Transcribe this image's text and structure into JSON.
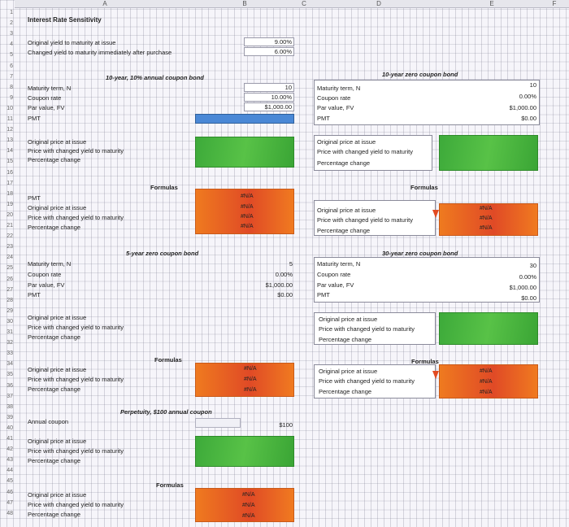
{
  "columns": [
    "A",
    "B",
    "C",
    "D",
    "E",
    "F"
  ],
  "rows": [
    "1",
    "2",
    "3",
    "4",
    "5",
    "6",
    "7",
    "8",
    "9",
    "10",
    "11",
    "12",
    "13",
    "14",
    "15",
    "16",
    "17",
    "18",
    "19",
    "20",
    "21",
    "22",
    "23",
    "24",
    "25",
    "26",
    "27",
    "28",
    "29",
    "30",
    "31",
    "32",
    "33",
    "34",
    "35",
    "36",
    "37",
    "38",
    "39",
    "40",
    "41",
    "42",
    "43",
    "44",
    "45",
    "46",
    "47",
    "48"
  ],
  "title": "Interest Rate Sensitivity",
  "inputs": {
    "orig_label": "Original yield to maturity at issue",
    "orig_value": "9.00%",
    "changed_label": "Changed yield to maturity immediately after purchase",
    "changed_value": "6.00%"
  },
  "bond10coupon": {
    "header": "10-year, 10% annual coupon bond",
    "maturity_label": "Maturity term, N",
    "maturity_value": "10",
    "coupon_label": "Coupon rate",
    "coupon_value": "10.00%",
    "par_label": "Par value, FV",
    "par_value": "$1,000.00",
    "pmt_label": "PMT",
    "price_orig": "Original price at issue",
    "price_changed": "Price with changed yield to maturity",
    "pct_change": "Percentage change",
    "formulas": "Formulas",
    "f_pmt": "PMT",
    "f_orig": "Original price at issue",
    "f_changed": "Price with changed yield to maturity",
    "f_pct": "Percentage change",
    "na1": "#N/A",
    "na2": "#N/A",
    "na3": "#N/A",
    "na4": "#N/A"
  },
  "bond10zero": {
    "header": "10-year zero coupon bond",
    "maturity_label": "Maturity term, N",
    "maturity_value": "10",
    "coupon_label": "Coupon rate",
    "coupon_value": "0.00%",
    "par_label": "Par value, FV",
    "par_value": "$1,000.00",
    "pmt_label": "PMT",
    "pmt_value": "$0.00",
    "price_orig": "Original price at issue",
    "price_changed": "Price with changed yield to maturity",
    "pct_change": "Percentage change",
    "formulas": "Formulas",
    "f_orig": "Original price at issue",
    "f_changed": "Price with changed yield to maturity",
    "f_pct": "Percentage change",
    "na1": "#N/A",
    "na2": "#N/A",
    "na3": "#N/A"
  },
  "bond5zero": {
    "header": "5-year zero coupon bond",
    "maturity_label": "Maturity term, N",
    "maturity_value": "5",
    "coupon_label": "Coupon rate",
    "coupon_value": "0.00%",
    "par_label": "Par value, FV",
    "par_value": "$1,000.00",
    "pmt_label": "PMT",
    "pmt_value": "$0.00",
    "price_orig": "Original price at issue",
    "price_changed": "Price with changed yield to maturity",
    "pct_change": "Percentage change",
    "formulas": "Formulas",
    "f_orig": "Original price at issue",
    "f_changed": "Price with changed yield to maturity",
    "f_pct": "Percentage change",
    "na1": "#N/A",
    "na2": "#N/A",
    "na3": "#N/A"
  },
  "bond30zero": {
    "header": "30-year zero coupon bond",
    "maturity_label": "Maturity term, N",
    "maturity_value": "30",
    "coupon_label": "Coupon rate",
    "coupon_value": "0.00%",
    "par_label": "Par value, FV",
    "par_value": "$1,000.00",
    "pmt_label": "PMT",
    "pmt_value": "$0.00",
    "price_orig": "Original price at issue",
    "price_changed": "Price with changed yield to maturity",
    "pct_change": "Percentage change",
    "formulas": "Formulas",
    "f_orig": "Original price at issue",
    "f_changed": "Price with changed yield to maturity",
    "f_pct": "Percentage change",
    "na1": "#N/A",
    "na2": "#N/A",
    "na3": "#N/A"
  },
  "perpetuity": {
    "header": "Perpetuity, $100 annual coupon",
    "coupon_label": "Annual coupon",
    "coupon_value": "$100",
    "price_orig": "Original price at issue",
    "price_changed": "Price with changed yield to maturity",
    "pct_change": "Percentage change",
    "formulas": "Formulas",
    "f_orig": "Original price at issue",
    "f_changed": "Price with changed yield to maturity",
    "f_pct": "Percentage change",
    "na1": "#N/A",
    "na2": "#N/A",
    "na3": "#N/A"
  },
  "colors": {
    "green": "#4cb840",
    "orange": "#ea6a22",
    "blue": "#4a88d6"
  }
}
